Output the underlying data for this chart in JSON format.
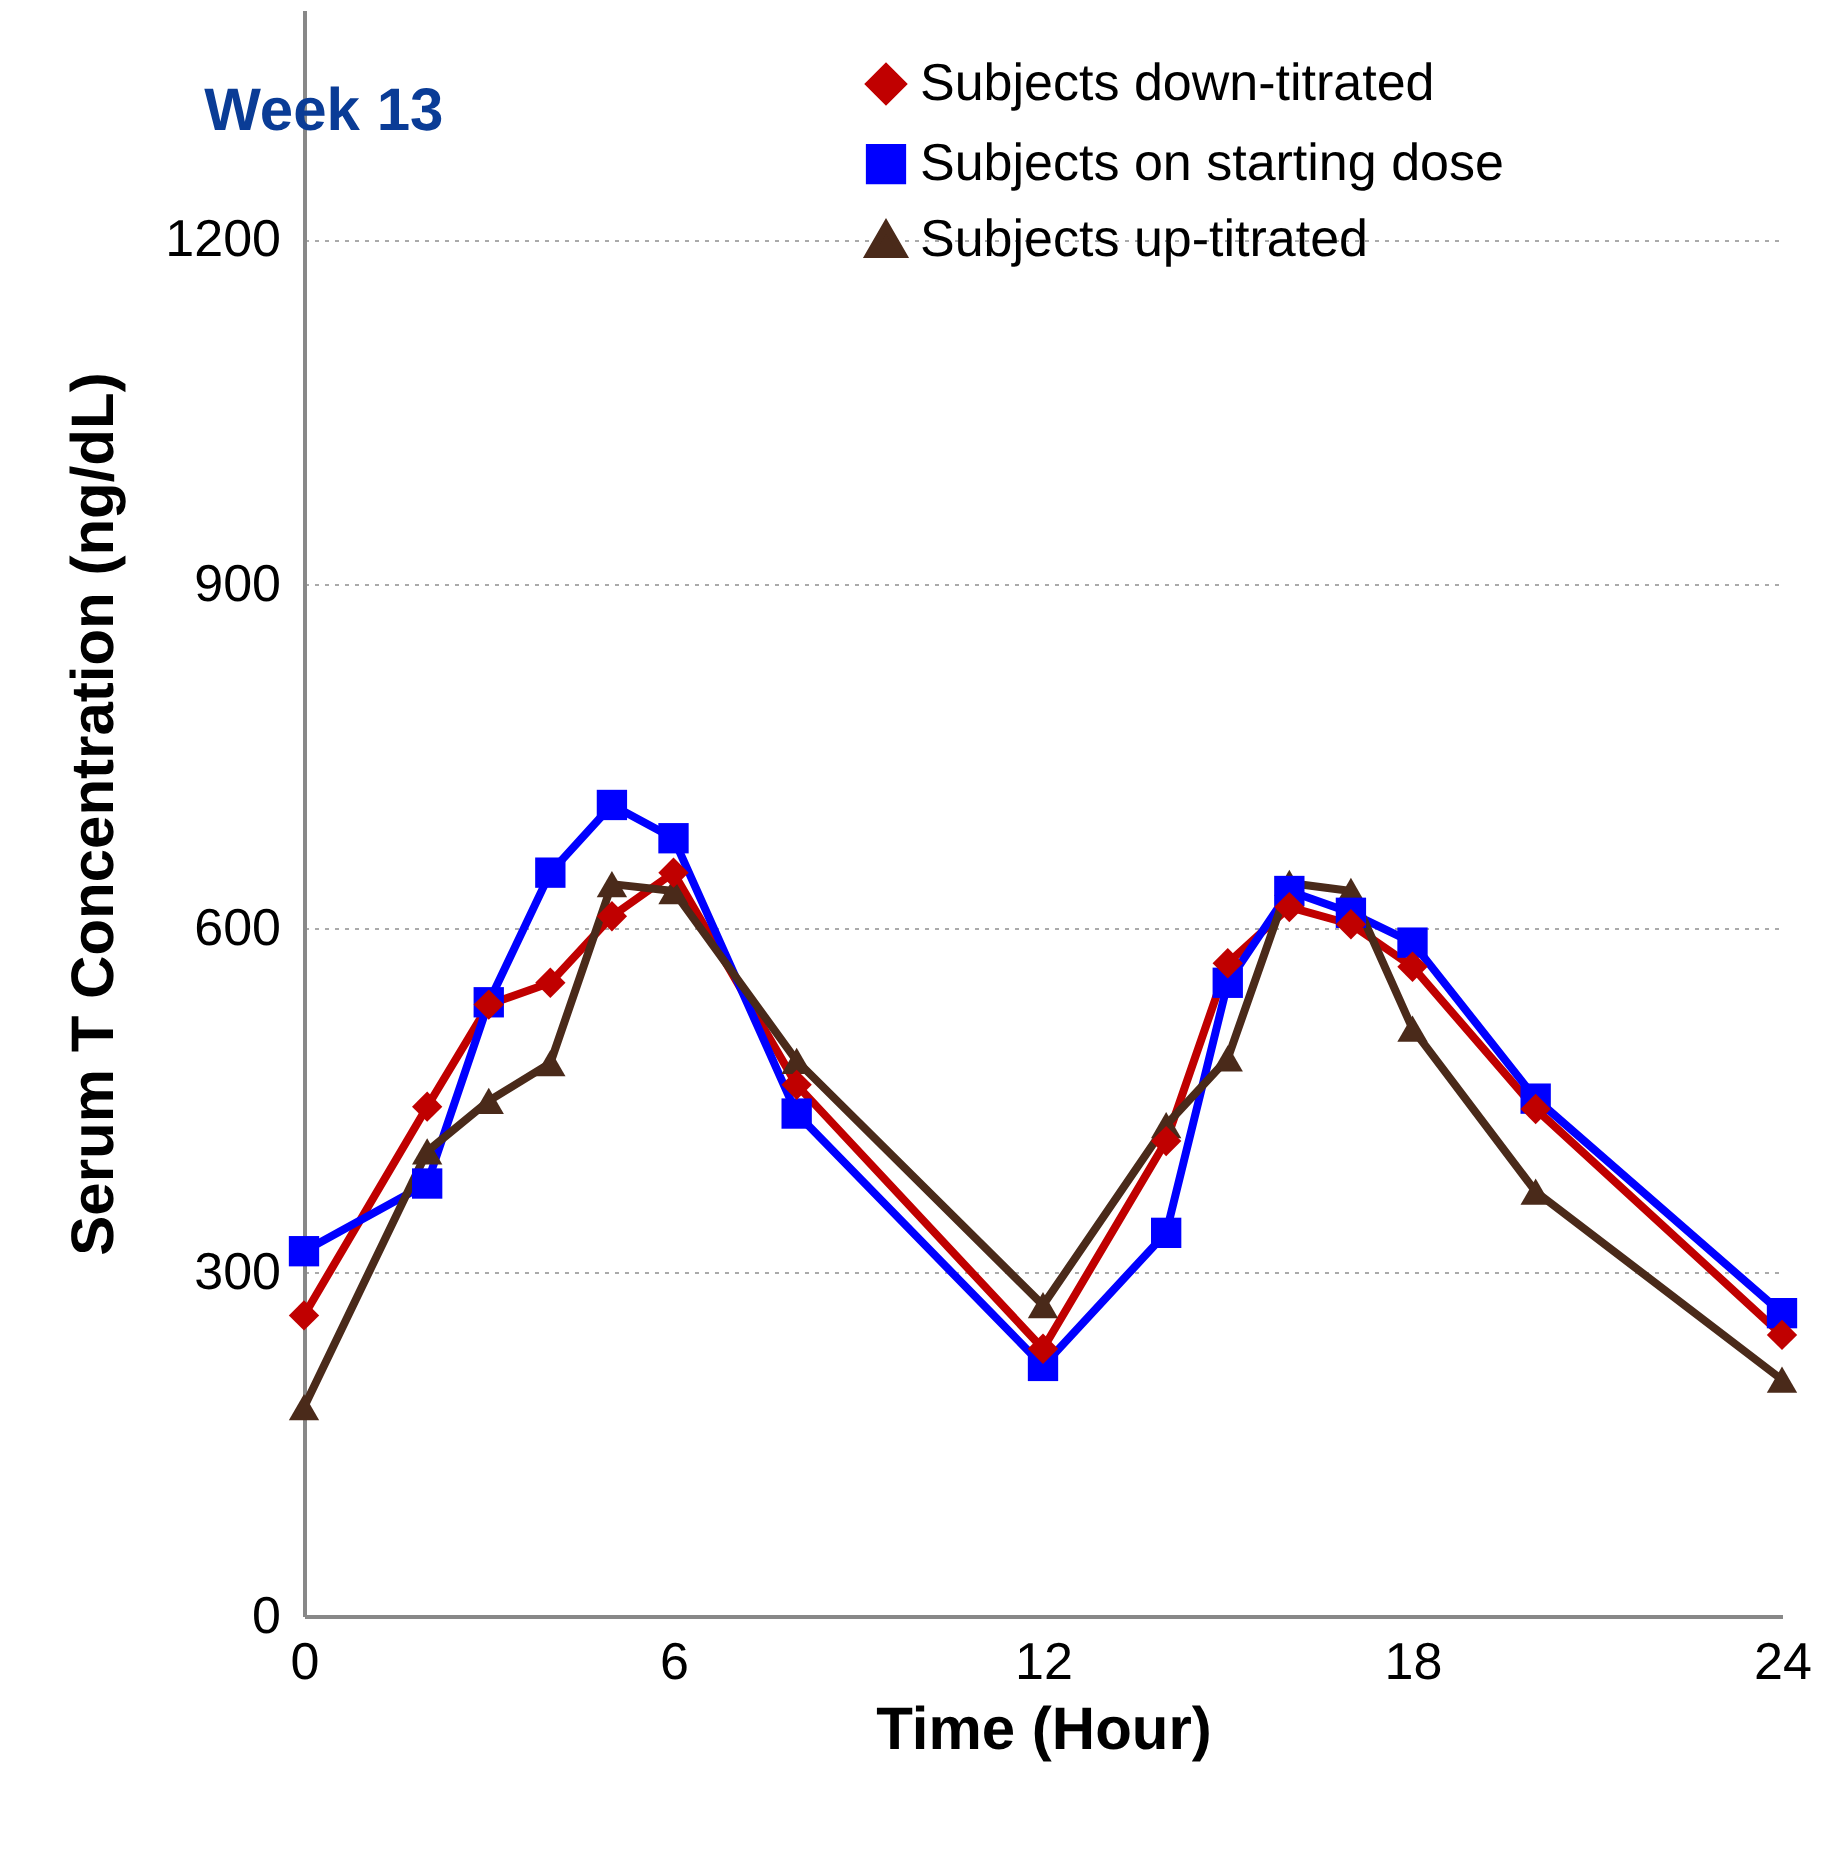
{
  "chart_data": {
    "type": "line",
    "title": "Week 13",
    "xlabel": "Time (Hour)",
    "ylabel": "Serum T Concentration (ng/dL)",
    "x": [
      0,
      2,
      3,
      4,
      5,
      6,
      8,
      12,
      14,
      15,
      16,
      17,
      18,
      20,
      24
    ],
    "series": [
      {
        "name": "Subjects down-titrated",
        "color": "#c00000",
        "marker": "diamond",
        "values": [
          262,
          444,
          533,
          552,
          610,
          648,
          463,
          233,
          414,
          569,
          618,
          603,
          566,
          442,
          245
        ]
      },
      {
        "name": "Subjects on starting dose",
        "color": "#0000ff",
        "marker": "square",
        "values": [
          318,
          377,
          535,
          648,
          707,
          678,
          438,
          218,
          334,
          552,
          632,
          613,
          587,
          451,
          264
        ]
      },
      {
        "name": "Subjects up-titrated",
        "color": "#4a2a1a",
        "marker": "triangle",
        "values": [
          182,
          405,
          449,
          482,
          638,
          632,
          484,
          271,
          428,
          486,
          639,
          632,
          512,
          370,
          206
        ]
      }
    ],
    "xlim": [
      0,
      24
    ],
    "xticks": [
      0,
      6,
      12,
      18,
      24
    ],
    "ylim": [
      0,
      1400
    ],
    "yticks": [
      0,
      300,
      600,
      900,
      1200
    ],
    "grid": "y",
    "legend": "top right",
    "line_style": "solid"
  }
}
